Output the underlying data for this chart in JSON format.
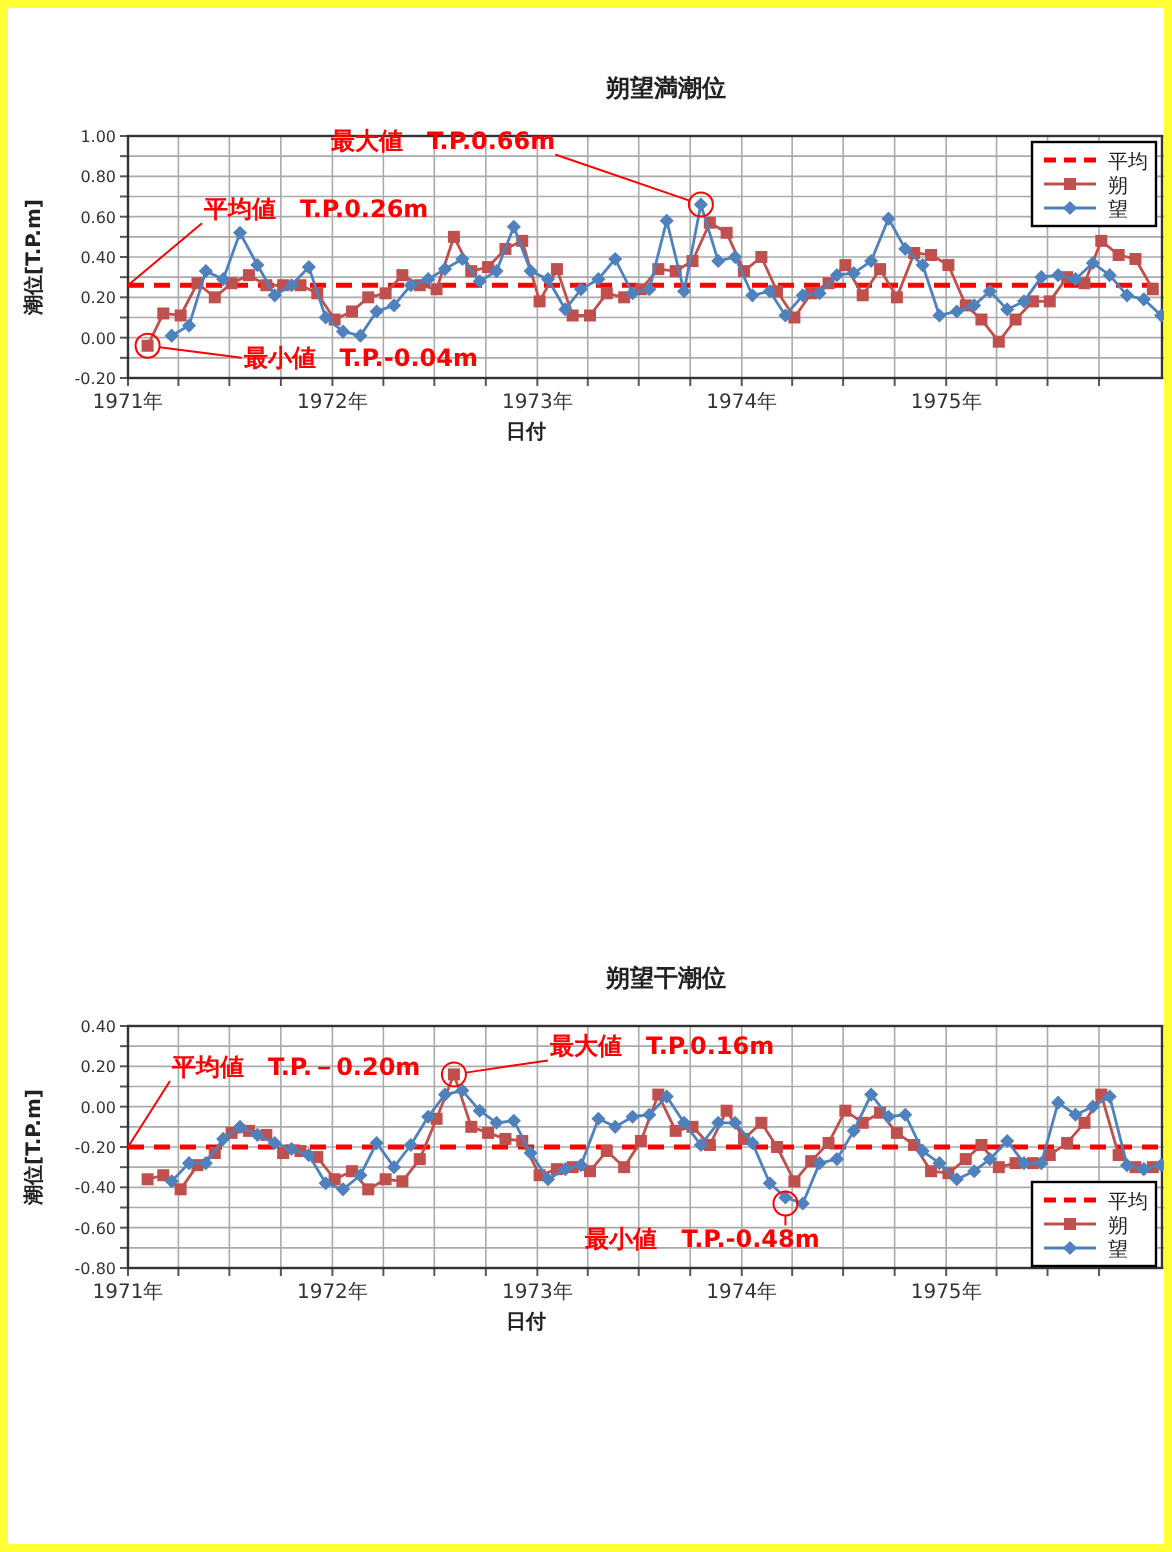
{
  "chart_data": [
    {
      "type": "line",
      "title": "朔望満潮位",
      "xlabel": "日付",
      "ylabel": "潮位[T.P.m]",
      "grid": true,
      "legend": "top right",
      "xlim": [
        "1971-01-01",
        "1976-01-25"
      ],
      "xticks": [
        {
          "value": "1971-01-01",
          "label": "1971年"
        },
        {
          "value": "1971-04-01",
          "label": null
        },
        {
          "value": "1971-07-01",
          "label": null
        },
        {
          "value": "1971-10-01",
          "label": null
        },
        {
          "value": "1972-01-01",
          "label": "1972年"
        },
        {
          "value": "1972-04-01",
          "label": null
        },
        {
          "value": "1972-07-01",
          "label": null
        },
        {
          "value": "1972-10-01",
          "label": null
        },
        {
          "value": "1973-01-01",
          "label": "1973年"
        },
        {
          "value": "1973-04-01",
          "label": null
        },
        {
          "value": "1973-07-01",
          "label": null
        },
        {
          "value": "1973-10-01",
          "label": null
        },
        {
          "value": "1974-01-01",
          "label": "1974年"
        },
        {
          "value": "1974-04-01",
          "label": null
        },
        {
          "value": "1974-07-01",
          "label": null
        },
        {
          "value": "1974-10-01",
          "label": null
        },
        {
          "value": "1975-01-01",
          "label": "1975年"
        },
        {
          "value": "1975-04-01",
          "label": null
        },
        {
          "value": "1975-07-01",
          "label": null
        },
        {
          "value": "1975-10-01",
          "label": null
        }
      ],
      "ylim": [
        -0.2,
        1.0
      ],
      "yticks": [
        {
          "value": 1.0,
          "label": "1.00"
        },
        {
          "value": 0.9,
          "label": null
        },
        {
          "value": 0.8,
          "label": "0.80"
        },
        {
          "value": 0.7,
          "label": null
        },
        {
          "value": 0.6,
          "label": "0.60"
        },
        {
          "value": 0.5,
          "label": null
        },
        {
          "value": 0.4,
          "label": "0.40"
        },
        {
          "value": 0.3,
          "label": null
        },
        {
          "value": 0.2,
          "label": "0.20"
        },
        {
          "value": 0.1,
          "label": null
        },
        {
          "value": 0.0,
          "label": "0.00"
        },
        {
          "value": -0.1,
          "label": null
        },
        {
          "value": -0.2,
          "label": "-0.20"
        }
      ],
      "series": [
        {
          "name": "朔",
          "color": "#c0504d",
          "marker": "square",
          "x": [
            "1971-02-05",
            "1971-03-05",
            "1971-04-05",
            "1971-05-05",
            "1971-06-05",
            "1971-07-05",
            "1971-08-05",
            "1971-09-05",
            "1971-10-05",
            "1971-11-05",
            "1971-12-05",
            "1972-01-05",
            "1972-02-05",
            "1972-03-05",
            "1972-04-05",
            "1972-05-05",
            "1972-06-05",
            "1972-07-05",
            "1972-08-05",
            "1972-09-05",
            "1972-10-05",
            "1972-11-05",
            "1972-12-05",
            "1973-01-05",
            "1973-02-05",
            "1973-03-05",
            "1973-04-05",
            "1973-05-05",
            "1973-06-05",
            "1973-07-05",
            "1973-08-05",
            "1973-09-05",
            "1973-10-05",
            "1973-11-05",
            "1973-12-05",
            "1974-01-05",
            "1974-02-05",
            "1974-03-05",
            "1974-04-05",
            "1974-05-05",
            "1974-06-05",
            "1974-07-05",
            "1974-08-05",
            "1974-09-05",
            "1974-10-05",
            "1974-11-05",
            "1974-12-05",
            "1975-01-05",
            "1975-02-05",
            "1975-03-05",
            "1975-04-05",
            "1975-05-05",
            "1975-06-05",
            "1975-07-05",
            "1975-08-05",
            "1975-09-05",
            "1975-10-05",
            "1975-11-05",
            "1975-12-05",
            "1976-01-05"
          ],
          "values": [
            -0.04,
            0.12,
            0.11,
            0.27,
            0.2,
            0.27,
            0.31,
            0.26,
            0.26,
            0.26,
            0.22,
            0.09,
            0.13,
            0.2,
            0.22,
            0.31,
            0.26,
            0.24,
            0.5,
            0.33,
            0.35,
            0.44,
            0.48,
            0.18,
            0.34,
            0.11,
            0.11,
            0.22,
            0.2,
            0.24,
            0.34,
            0.33,
            0.38,
            0.57,
            0.52,
            0.33,
            0.4,
            0.23,
            0.1,
            0.22,
            0.27,
            0.36,
            0.21,
            0.34,
            0.2,
            0.42,
            0.41,
            0.36,
            0.16,
            0.09,
            -0.02,
            0.09,
            0.18,
            0.18,
            0.3,
            0.27,
            0.48,
            0.41,
            0.39,
            0.24
          ]
        },
        {
          "name": "望",
          "color": "#4f81bd",
          "marker": "diamond",
          "x": [
            "1971-03-20",
            "1971-04-20",
            "1971-05-20",
            "1971-06-20",
            "1971-07-20",
            "1971-08-20",
            "1971-09-20",
            "1971-10-20",
            "1971-11-20",
            "1971-12-20",
            "1972-01-20",
            "1972-02-20",
            "1972-03-20",
            "1972-04-20",
            "1972-05-20",
            "1972-06-20",
            "1972-07-20",
            "1972-08-20",
            "1972-09-20",
            "1972-10-20",
            "1972-11-20",
            "1972-12-20",
            "1973-01-20",
            "1973-02-20",
            "1973-03-20",
            "1973-04-20",
            "1973-05-20",
            "1973-06-20",
            "1973-07-20",
            "1973-08-20",
            "1973-09-20",
            "1973-10-20",
            "1973-11-20",
            "1973-12-20",
            "1974-01-20",
            "1974-02-20",
            "1974-03-20",
            "1974-04-20",
            "1974-05-20",
            "1974-06-20",
            "1974-07-20",
            "1974-08-20",
            "1974-09-20",
            "1974-10-20",
            "1974-11-20",
            "1974-12-20",
            "1975-01-20",
            "1975-02-20",
            "1975-03-20",
            "1975-04-20",
            "1975-05-20",
            "1975-06-20",
            "1975-07-20",
            "1975-08-20",
            "1975-09-20",
            "1975-10-20",
            "1975-11-20",
            "1975-12-20",
            "1976-01-20"
          ],
          "values": [
            0.01,
            0.06,
            0.33,
            0.29,
            0.52,
            0.36,
            0.21,
            0.26,
            0.35,
            0.1,
            0.03,
            0.01,
            0.13,
            0.16,
            0.26,
            0.29,
            0.34,
            0.39,
            0.28,
            0.33,
            0.55,
            0.33,
            0.29,
            0.14,
            0.24,
            0.29,
            0.39,
            0.22,
            0.24,
            0.58,
            0.23,
            0.66,
            0.38,
            0.4,
            0.21,
            0.23,
            0.11,
            0.21,
            0.22,
            0.31,
            0.32,
            0.38,
            0.59,
            0.44,
            0.36,
            0.11,
            0.13,
            0.16,
            0.23,
            0.14,
            0.18,
            0.3,
            0.31,
            0.29,
            0.37,
            0.31,
            0.21,
            0.19,
            0.11
          ]
        }
      ],
      "ref_lines": [
        {
          "axis": "y",
          "value": 0.26,
          "label": "平均",
          "color": "#ff0000",
          "line_style": "dashed"
        }
      ],
      "annotations": [
        {
          "text": "平均値　T.P.0.26m",
          "x": "1971-01-01",
          "y": 0.26
        },
        {
          "text": "最大値　T.P.0.66m",
          "x": "1973-10-20",
          "y": 0.66
        },
        {
          "text": "最小値　T.P.-0.04m",
          "x": "1971-02-05",
          "y": -0.04
        }
      ]
    },
    {
      "type": "line",
      "title": "朔望干潮位",
      "xlabel": "日付",
      "ylabel": "潮位[T.P.m]",
      "grid": true,
      "legend": "bottom right",
      "xlim": [
        "1971-01-01",
        "1976-01-25"
      ],
      "xticks": [
        {
          "value": "1971-01-01",
          "label": "1971年"
        },
        {
          "value": "1971-04-01",
          "label": null
        },
        {
          "value": "1971-07-01",
          "label": null
        },
        {
          "value": "1971-10-01",
          "label": null
        },
        {
          "value": "1972-01-01",
          "label": "1972年"
        },
        {
          "value": "1972-04-01",
          "label": null
        },
        {
          "value": "1972-07-01",
          "label": null
        },
        {
          "value": "1972-10-01",
          "label": null
        },
        {
          "value": "1973-01-01",
          "label": "1973年"
        },
        {
          "value": "1973-04-01",
          "label": null
        },
        {
          "value": "1973-07-01",
          "label": null
        },
        {
          "value": "1973-10-01",
          "label": null
        },
        {
          "value": "1974-01-01",
          "label": "1974年"
        },
        {
          "value": "1974-04-01",
          "label": null
        },
        {
          "value": "1974-07-01",
          "label": null
        },
        {
          "value": "1974-10-01",
          "label": null
        },
        {
          "value": "1975-01-01",
          "label": "1975年"
        },
        {
          "value": "1975-04-01",
          "label": null
        },
        {
          "value": "1975-07-01",
          "label": null
        },
        {
          "value": "1975-10-01",
          "label": null
        }
      ],
      "ylim": [
        -0.8,
        0.4
      ],
      "yticks": [
        {
          "value": 0.4,
          "label": "0.40"
        },
        {
          "value": 0.3,
          "label": null
        },
        {
          "value": 0.2,
          "label": "0.20"
        },
        {
          "value": 0.1,
          "label": null
        },
        {
          "value": 0.0,
          "label": "0.00"
        },
        {
          "value": -0.1,
          "label": null
        },
        {
          "value": -0.2,
          "label": "-0.20"
        },
        {
          "value": -0.3,
          "label": null
        },
        {
          "value": -0.4,
          "label": "-0.40"
        },
        {
          "value": -0.5,
          "label": null
        },
        {
          "value": -0.6,
          "label": "-0.60"
        },
        {
          "value": -0.7,
          "label": null
        },
        {
          "value": -0.8,
          "label": "-0.80"
        }
      ],
      "series": [
        {
          "name": "朔",
          "color": "#c0504d",
          "marker": "square",
          "x": [
            "1971-02-05",
            "1971-03-05",
            "1971-04-05",
            "1971-05-05",
            "1971-06-05",
            "1971-07-05",
            "1971-08-05",
            "1971-09-05",
            "1971-10-05",
            "1971-11-05",
            "1971-12-05",
            "1972-01-05",
            "1972-02-05",
            "1972-03-05",
            "1972-04-05",
            "1972-05-05",
            "1972-06-05",
            "1972-07-05",
            "1972-08-05",
            "1972-09-05",
            "1972-10-05",
            "1972-11-05",
            "1972-12-05",
            "1973-01-05",
            "1973-02-05",
            "1973-03-05",
            "1973-04-05",
            "1973-05-05",
            "1973-06-05",
            "1973-07-05",
            "1973-08-05",
            "1973-09-05",
            "1973-10-05",
            "1973-11-05",
            "1973-12-05",
            "1974-01-05",
            "1974-02-05",
            "1974-03-05",
            "1974-04-05",
            "1974-05-05",
            "1974-06-05",
            "1974-07-05",
            "1974-08-05",
            "1974-09-05",
            "1974-10-05",
            "1974-11-05",
            "1974-12-05",
            "1975-01-05",
            "1975-02-05",
            "1975-03-05",
            "1975-04-05",
            "1975-05-05",
            "1975-06-05",
            "1975-07-05",
            "1975-08-05",
            "1975-09-05",
            "1975-10-05",
            "1975-11-05",
            "1975-12-05",
            "1976-01-05"
          ],
          "values": [
            -0.36,
            -0.34,
            -0.41,
            -0.29,
            -0.23,
            -0.13,
            -0.12,
            -0.14,
            -0.23,
            -0.22,
            -0.25,
            -0.36,
            -0.32,
            -0.41,
            -0.36,
            -0.37,
            -0.26,
            -0.06,
            0.16,
            -0.1,
            -0.13,
            -0.16,
            -0.17,
            -0.34,
            -0.31,
            -0.3,
            -0.32,
            -0.22,
            -0.3,
            -0.17,
            0.06,
            -0.12,
            -0.1,
            -0.19,
            -0.02,
            -0.16,
            -0.08,
            -0.2,
            -0.37,
            -0.27,
            -0.18,
            -0.02,
            -0.08,
            -0.03,
            -0.13,
            -0.19,
            -0.32,
            -0.33,
            -0.26,
            -0.19,
            -0.3,
            -0.28,
            -0.28,
            -0.24,
            -0.18,
            -0.08,
            0.06,
            -0.24,
            -0.3,
            -0.3
          ]
        },
        {
          "name": "望",
          "color": "#4f81bd",
          "marker": "diamond",
          "x": [
            "1971-03-20",
            "1971-04-20",
            "1971-05-20",
            "1971-06-20",
            "1971-07-20",
            "1971-08-20",
            "1971-09-20",
            "1971-10-20",
            "1971-11-20",
            "1971-12-20",
            "1972-01-20",
            "1972-02-20",
            "1972-03-20",
            "1972-04-20",
            "1972-05-20",
            "1972-06-20",
            "1972-07-20",
            "1972-08-20",
            "1972-09-20",
            "1972-10-20",
            "1972-11-20",
            "1972-12-20",
            "1973-01-20",
            "1973-02-20",
            "1973-03-20",
            "1973-04-20",
            "1973-05-20",
            "1973-06-20",
            "1973-07-20",
            "1973-08-20",
            "1973-09-20",
            "1973-10-20",
            "1973-11-20",
            "1973-12-20",
            "1974-01-20",
            "1974-02-20",
            "1974-03-20",
            "1974-04-20",
            "1974-05-20",
            "1974-06-20",
            "1974-07-20",
            "1974-08-20",
            "1974-09-20",
            "1974-10-20",
            "1974-11-20",
            "1974-12-20",
            "1975-01-20",
            "1975-02-20",
            "1975-03-20",
            "1975-04-20",
            "1975-05-20",
            "1975-06-20",
            "1975-07-20",
            "1975-08-20",
            "1975-09-20",
            "1975-10-20",
            "1975-11-20",
            "1975-12-20",
            "1976-01-20"
          ],
          "values": [
            -0.37,
            -0.28,
            -0.28,
            -0.16,
            -0.1,
            -0.14,
            -0.18,
            -0.21,
            -0.24,
            -0.38,
            -0.41,
            -0.34,
            -0.18,
            -0.3,
            -0.19,
            -0.05,
            0.06,
            0.08,
            -0.02,
            -0.08,
            -0.07,
            -0.23,
            -0.36,
            -0.31,
            -0.29,
            -0.06,
            -0.1,
            -0.05,
            -0.04,
            0.05,
            -0.08,
            -0.19,
            -0.08,
            -0.08,
            -0.18,
            -0.38,
            -0.45,
            -0.48,
            -0.28,
            -0.26,
            -0.12,
            0.06,
            -0.05,
            -0.04,
            -0.22,
            -0.28,
            -0.36,
            -0.32,
            -0.26,
            -0.17,
            -0.28,
            -0.28,
            0.02,
            -0.04,
            0.0,
            0.05,
            -0.29,
            -0.31,
            -0.29
          ]
        }
      ],
      "ref_lines": [
        {
          "axis": "y",
          "value": -0.2,
          "label": "平均",
          "color": "#ff0000",
          "line_style": "dashed"
        }
      ],
      "annotations": [
        {
          "text": "平均値　T.P.－0.20m",
          "x": "1971-01-01",
          "y": -0.2
        },
        {
          "text": "最大値　T.P.0.16m",
          "x": "1972-08-05",
          "y": 0.16
        },
        {
          "text": "最小値　T.P.-0.48m",
          "x": "1974-03-20",
          "y": -0.48
        }
      ]
    }
  ]
}
